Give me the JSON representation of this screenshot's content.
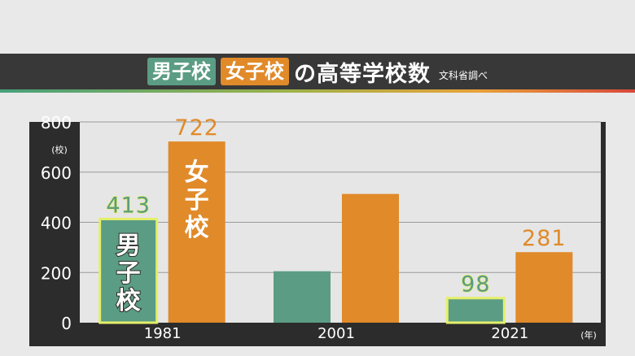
{
  "title": {
    "tag_boys": "男子校",
    "tag_girls": "女子校",
    "main": "の高等学校数",
    "source": "文科省調べ"
  },
  "colors": {
    "boys": "#5b9c84",
    "girls": "#e08a2a",
    "highlight": "#e4ef6a",
    "grid": "#9a9a9a",
    "plot_bg": "#e6e6e6",
    "panel_bg": "#2c2c2c"
  },
  "chart_data": {
    "type": "bar",
    "title": "",
    "xlabel": "",
    "ylabel": "",
    "y_unit": "(校)",
    "x_unit": "(年)",
    "ylim": [
      0,
      800
    ],
    "yticks": [
      0,
      200,
      400,
      600,
      800
    ],
    "grid": true,
    "categories": [
      "1981",
      "2001",
      "2021"
    ],
    "series": [
      {
        "name": "男子校",
        "values": [
          413,
          205,
          98
        ],
        "labels": [
          "413",
          "",
          "98"
        ]
      },
      {
        "name": "女子校",
        "values": [
          722,
          513,
          281
        ],
        "labels": [
          "722",
          "",
          "281"
        ]
      }
    ],
    "in_bar_labels": {
      "boys_1981": [
        "男",
        "子",
        "校"
      ],
      "girls_1981": [
        "女",
        "子",
        "校"
      ]
    }
  }
}
